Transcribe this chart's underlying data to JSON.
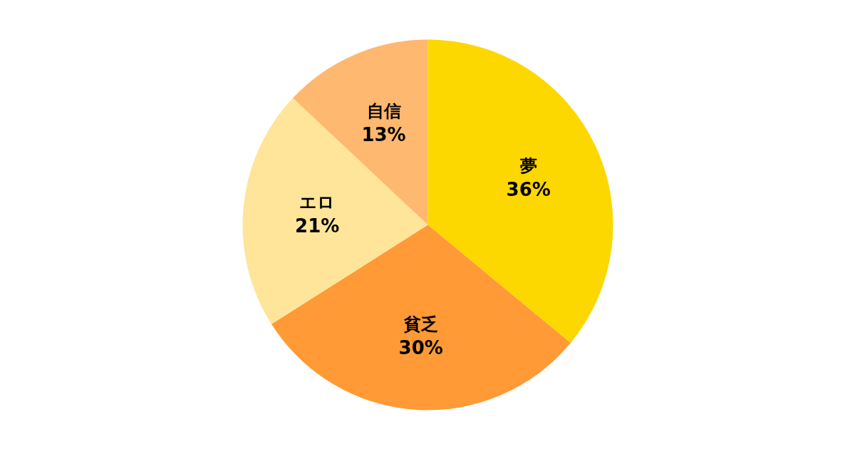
{
  "chart_data": {
    "type": "pie",
    "categories": [
      "夢",
      "貧乏",
      "エロ",
      "自信"
    ],
    "values": [
      36,
      30,
      21,
      13
    ],
    "colors": [
      "#fdd700",
      "#ff9a36",
      "#ffe599",
      "#ffb86f"
    ],
    "value_labels": [
      "36%",
      "30%",
      "21%",
      "13%"
    ]
  }
}
